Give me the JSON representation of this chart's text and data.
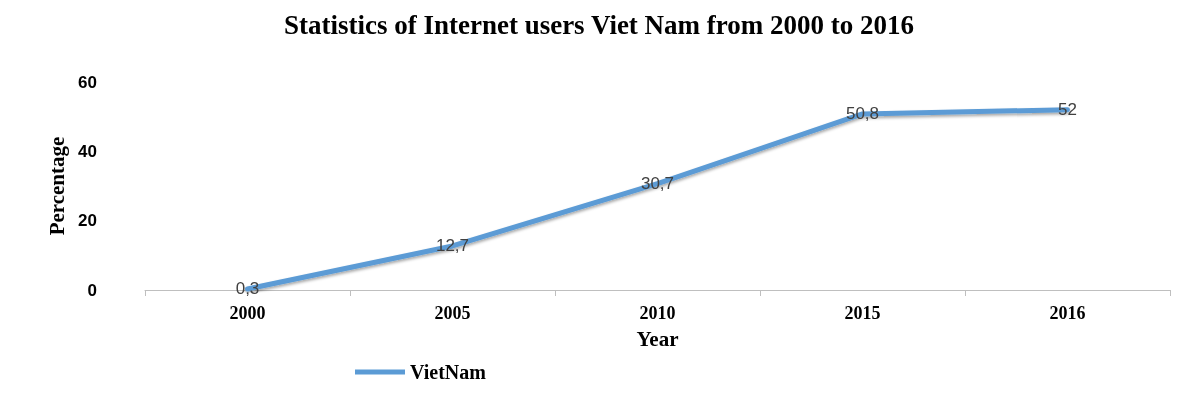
{
  "chart_data": {
    "type": "line",
    "title": "Statistics of Internet users Viet Nam from 2000 to 2016",
    "xlabel": "Year",
    "ylabel": "Percentage",
    "categories": [
      "2000",
      "2005",
      "2010",
      "2015",
      "2016"
    ],
    "series": [
      {
        "name": "VietNam",
        "color": "#5b9bd5",
        "values": [
          0.3,
          12.7,
          30.7,
          50.8,
          52
        ],
        "value_labels": [
          "0,3",
          "12,7",
          "30,7",
          "50,8",
          "52"
        ]
      }
    ],
    "ylim": [
      0,
      60
    ],
    "yticks": [
      0,
      20,
      40,
      60
    ],
    "legend": "bottom left"
  }
}
